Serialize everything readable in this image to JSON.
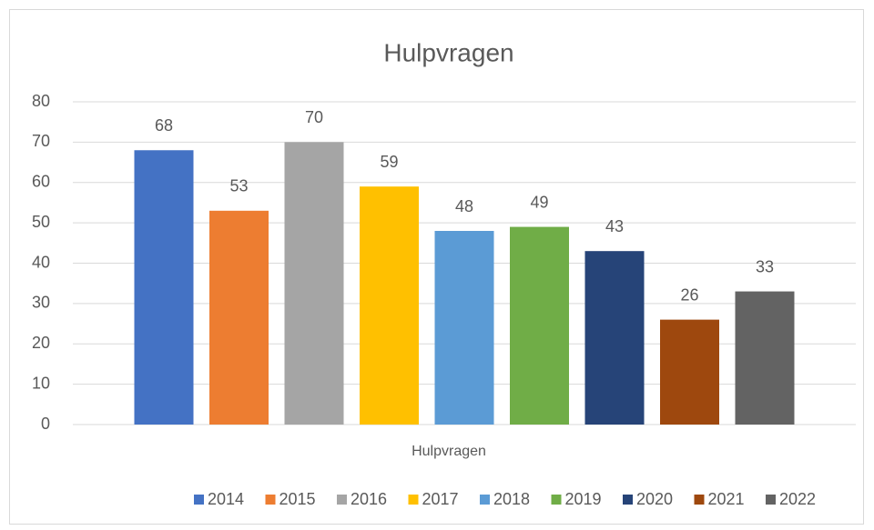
{
  "chart_data": {
    "type": "bar",
    "title": "Hulpvragen",
    "categories": [
      "Hulpvragen"
    ],
    "series": [
      {
        "name": "2014",
        "color": "#4472C4",
        "values": [
          68
        ]
      },
      {
        "name": "2015",
        "color": "#ED7D31",
        "values": [
          53
        ]
      },
      {
        "name": "2016",
        "color": "#A5A5A5",
        "values": [
          70
        ]
      },
      {
        "name": "2017",
        "color": "#FFC000",
        "values": [
          59
        ]
      },
      {
        "name": "2018",
        "color": "#5B9BD5",
        "values": [
          48
        ]
      },
      {
        "name": "2019",
        "color": "#70AD47",
        "values": [
          49
        ]
      },
      {
        "name": "2020",
        "color": "#264478",
        "values": [
          43
        ]
      },
      {
        "name": "2021",
        "color": "#9E480E",
        "values": [
          26
        ]
      },
      {
        "name": "2022",
        "color": "#636363",
        "values": [
          33
        ]
      }
    ],
    "ylim": [
      0,
      80
    ],
    "yticks": [
      0,
      10,
      20,
      30,
      40,
      50,
      60,
      70,
      80
    ],
    "grid": true,
    "legend": "bottom"
  }
}
